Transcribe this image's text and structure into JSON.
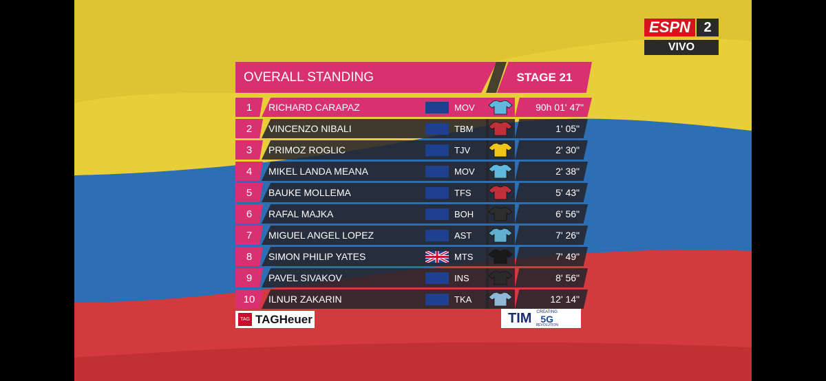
{
  "header": {
    "title": "OVERALL STANDING",
    "stage": "STAGE 21"
  },
  "broadcaster": {
    "brand": "ESPN",
    "channel": "2",
    "status": "VIVO"
  },
  "rows": [
    {
      "rank": 1,
      "name": "RICHARD CARAPAZ",
      "team": "MOV",
      "time": "90h 01' 47\""
    },
    {
      "rank": 2,
      "name": "VINCENZO NIBALI",
      "team": "TBM",
      "time": "1' 05\""
    },
    {
      "rank": 3,
      "name": "PRIMOZ ROGLIC",
      "team": "TJV",
      "time": "2' 30\""
    },
    {
      "rank": 4,
      "name": "MIKEL LANDA MEANA",
      "team": "MOV",
      "time": "2' 38\""
    },
    {
      "rank": 5,
      "name": "BAUKE MOLLEMA",
      "team": "TFS",
      "time": "5' 43\""
    },
    {
      "rank": 6,
      "name": "RAFAL MAJKA",
      "team": "BOH",
      "time": "6' 56\""
    },
    {
      "rank": 7,
      "name": "MIGUEL ANGEL LOPEZ",
      "team": "AST",
      "time": "7' 26\""
    },
    {
      "rank": 8,
      "name": "SIMON PHILIP YATES",
      "team": "MTS",
      "time": "7' 49\""
    },
    {
      "rank": 9,
      "name": "PAVEL SIVAKOV",
      "team": "INS",
      "time": "8' 56\""
    },
    {
      "rank": 10,
      "name": "ILNUR ZAKARIN",
      "team": "TKA",
      "time": "12' 14\""
    }
  ],
  "sponsors": {
    "tag_small": "TAG",
    "tag_brand": "TAGHeuer",
    "tim": "TIM",
    "tim_top": "CREATING",
    "tim_5g": "5G",
    "tim_bottom": "REVOLUTION"
  }
}
